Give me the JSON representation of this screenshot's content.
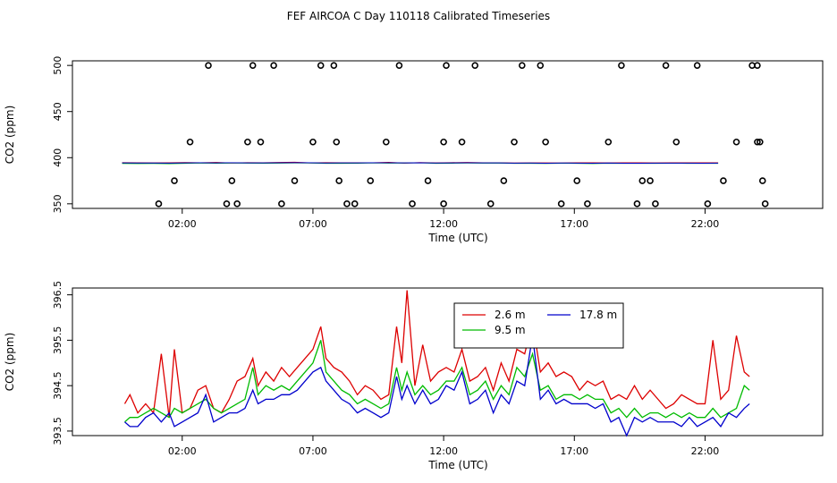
{
  "title": "FEF AIRCOA C  Day 110118  Calibrated Timeseries",
  "colors": {
    "s1": "#dd0000",
    "s2": "#00bb00",
    "s3": "#0000cc",
    "axis": "#000000"
  },
  "chart_data": [
    {
      "type": "scatter",
      "xlabel": "Time (UTC)",
      "ylabel": "CO2 (ppm)",
      "xlim": [
        -2.2,
        26.5
      ],
      "ylim": [
        345,
        505
      ],
      "xticks": [
        2,
        7,
        12,
        17,
        22
      ],
      "xticklabels": [
        "02:00",
        "07:00",
        "12:00",
        "17:00",
        "22:00"
      ],
      "yticks": [
        350,
        400,
        450,
        500
      ],
      "yticklabels": [
        "350",
        "400",
        "450",
        "500"
      ],
      "points_x": [
        1.1,
        1.7,
        2.3,
        3.0,
        3.7,
        3.9,
        4.1,
        4.5,
        4.7,
        5.0,
        5.5,
        5.8,
        6.3,
        7.0,
        7.3,
        7.8,
        7.9,
        8.0,
        8.3,
        8.6,
        9.2,
        9.8,
        10.3,
        10.8,
        11.4,
        12.0,
        12.0,
        12.1,
        12.7,
        13.2,
        13.8,
        14.3,
        14.7,
        15.0,
        15.7,
        15.9,
        16.5,
        17.1,
        17.5,
        18.3,
        18.8,
        19.4,
        19.6,
        19.9,
        20.1,
        20.5,
        20.9,
        21.7,
        22.1,
        22.7,
        23.2,
        23.8,
        24.0,
        24.0,
        24.1,
        24.2,
        24.3
      ],
      "points_y": [
        350,
        375,
        417,
        500,
        350,
        375,
        350,
        417,
        500,
        417,
        500,
        350,
        375,
        417,
        500,
        500,
        417,
        375,
        350,
        350,
        375,
        417,
        500,
        350,
        375,
        350,
        417,
        500,
        417,
        500,
        350,
        375,
        417,
        500,
        500,
        417,
        350,
        375,
        350,
        417,
        500,
        350,
        375,
        375,
        350,
        500,
        417,
        500,
        350,
        375,
        417,
        500,
        500,
        417,
        417,
        375,
        350
      ],
      "series": [
        {
          "name": "",
          "values": [
            394.6,
            394.5,
            394.3,
            394.4,
            394.7,
            394.5,
            394.8,
            394.2,
            394.6,
            394.5,
            394.8,
            395.0,
            394.3,
            394.6,
            394.4,
            394.5,
            394.5,
            394.9,
            394.1,
            394.7,
            394.3,
            394.6,
            394.8,
            394.4,
            394.5,
            394.2,
            394.3,
            394.3,
            394.2,
            394.4,
            394.5,
            394.3,
            394.4,
            394.5,
            394.3,
            394.4,
            394.4,
            394.4,
            394.4
          ]
        },
        {
          "name": "",
          "values": [
            393.7,
            393.6,
            393.7,
            393.5,
            393.9,
            394.2,
            394.0,
            394.2,
            394.1,
            394.0,
            394.1,
            394.3,
            394.2,
            393.8,
            393.9,
            394.0,
            394.3,
            394.1,
            394.2,
            394.4,
            393.8,
            394.0,
            394.2,
            394.1,
            394.2,
            393.9,
            393.8,
            393.7,
            394.0,
            393.9,
            393.6,
            394.0,
            393.8,
            393.9,
            393.9,
            394.0,
            393.9,
            393.9,
            393.9
          ]
        },
        {
          "name": "",
          "values": [
            394.3,
            394.2,
            394.2,
            394.1,
            394.3,
            394.4,
            394.3,
            394.5,
            394.3,
            394.3,
            394.5,
            394.6,
            394.4,
            394.2,
            394.3,
            394.3,
            394.4,
            394.5,
            394.3,
            394.5,
            394.2,
            394.3,
            394.4,
            394.3,
            394.3,
            394.1,
            394.2,
            394.0,
            394.2,
            394.1,
            394.0,
            394.2,
            394.0,
            394.0,
            394.1,
            394.1,
            394.1,
            394.0,
            394.1
          ]
        }
      ],
      "series_x": [
        -0.3,
        0.3,
        0.9,
        1.5,
        2.1,
        2.7,
        3.3,
        3.9,
        4.5,
        5.1,
        5.7,
        6.3,
        6.9,
        7.5,
        8.1,
        8.7,
        9.3,
        9.9,
        10.5,
        11.1,
        11.7,
        12.3,
        12.9,
        13.5,
        14.1,
        14.7,
        15.3,
        15.9,
        16.5,
        17.1,
        17.7,
        18.3,
        18.9,
        19.5,
        20.1,
        20.7,
        21.3,
        21.9,
        22.5
      ]
    },
    {
      "type": "line",
      "xlabel": "Time (UTC)",
      "ylabel": "CO2 (ppm)",
      "xlim": [
        -2.2,
        26.5
      ],
      "ylim": [
        393.4,
        396.65
      ],
      "xticks": [
        2,
        7,
        12,
        17,
        22
      ],
      "xticklabels": [
        "02:00",
        "07:00",
        "12:00",
        "17:00",
        "22:00"
      ],
      "yticks": [
        393.5,
        394.5,
        395.5,
        396.5
      ],
      "yticklabels": [
        "393.5",
        "394.5",
        "395.5",
        "396.5"
      ],
      "x": [
        -0.2,
        0.0,
        0.3,
        0.6,
        0.9,
        1.2,
        1.5,
        1.7,
        2.0,
        2.3,
        2.6,
        2.9,
        3.2,
        3.5,
        3.8,
        4.1,
        4.4,
        4.7,
        4.9,
        5.2,
        5.5,
        5.8,
        6.1,
        6.4,
        6.7,
        7.0,
        7.3,
        7.5,
        7.8,
        8.1,
        8.4,
        8.7,
        9.0,
        9.3,
        9.6,
        9.9,
        10.2,
        10.4,
        10.6,
        10.9,
        11.2,
        11.5,
        11.8,
        12.1,
        12.4,
        12.7,
        13.0,
        13.3,
        13.6,
        13.9,
        14.2,
        14.5,
        14.8,
        15.1,
        15.4,
        15.7,
        16.0,
        16.3,
        16.6,
        16.9,
        17.2,
        17.5,
        17.8,
        18.1,
        18.4,
        18.7,
        19.0,
        19.3,
        19.6,
        19.9,
        20.2,
        20.5,
        20.8,
        21.1,
        21.4,
        21.7,
        22.0,
        22.3,
        22.6,
        22.9,
        23.2,
        23.5,
        23.7
      ],
      "series": [
        {
          "name": "2.6 m",
          "color": "#dd0000",
          "values": [
            394.1,
            394.3,
            393.9,
            394.1,
            393.9,
            395.2,
            393.8,
            395.3,
            393.9,
            394.0,
            394.4,
            394.5,
            394.0,
            393.9,
            394.2,
            394.6,
            394.7,
            395.1,
            394.5,
            394.8,
            394.6,
            394.9,
            394.7,
            394.9,
            395.1,
            395.3,
            395.8,
            395.1,
            394.9,
            394.8,
            394.6,
            394.3,
            394.5,
            394.4,
            394.2,
            394.3,
            395.8,
            395.0,
            396.6,
            394.5,
            395.4,
            394.6,
            394.8,
            394.9,
            394.8,
            395.3,
            394.6,
            394.7,
            394.9,
            394.4,
            395.0,
            394.6,
            395.3,
            395.2,
            395.9,
            394.8,
            395.0,
            394.7,
            394.8,
            394.7,
            394.4,
            394.6,
            394.5,
            394.6,
            394.2,
            394.3,
            394.2,
            394.5,
            394.2,
            394.4,
            394.2,
            394.0,
            394.1,
            394.3,
            394.2,
            394.1,
            394.1,
            395.5,
            394.2,
            394.4,
            395.6,
            394.8,
            394.7
          ]
        },
        {
          "name": "9.5 m",
          "color": "#00bb00",
          "values": [
            393.7,
            393.8,
            393.8,
            393.9,
            394.0,
            393.9,
            393.8,
            394.0,
            393.9,
            394.0,
            394.1,
            394.2,
            394.0,
            393.9,
            394.0,
            394.1,
            394.2,
            394.9,
            394.3,
            394.5,
            394.4,
            394.5,
            394.4,
            394.6,
            394.8,
            395.0,
            395.5,
            394.8,
            394.6,
            394.4,
            394.3,
            394.1,
            394.2,
            394.1,
            394.0,
            394.1,
            394.9,
            394.4,
            394.8,
            394.3,
            394.5,
            394.3,
            394.4,
            394.6,
            394.6,
            394.9,
            394.3,
            394.4,
            394.6,
            394.2,
            394.5,
            394.3,
            394.9,
            394.7,
            395.2,
            394.4,
            394.5,
            394.2,
            394.3,
            394.3,
            394.2,
            394.3,
            394.2,
            394.2,
            393.9,
            394.0,
            393.8,
            394.0,
            393.8,
            393.9,
            393.9,
            393.8,
            393.9,
            393.8,
            393.9,
            393.8,
            393.8,
            394.0,
            393.8,
            393.9,
            394.0,
            394.5,
            394.4
          ]
        },
        {
          "name": "17.8 m",
          "color": "#0000cc",
          "values": [
            393.7,
            393.6,
            393.6,
            393.8,
            393.9,
            393.7,
            393.9,
            393.6,
            393.7,
            393.8,
            393.9,
            394.3,
            393.7,
            393.8,
            393.9,
            393.9,
            394.0,
            394.4,
            394.1,
            394.2,
            394.2,
            394.3,
            394.3,
            394.4,
            394.6,
            394.8,
            394.9,
            394.6,
            394.4,
            394.2,
            394.1,
            393.9,
            394.0,
            393.9,
            393.8,
            393.9,
            394.7,
            394.2,
            394.5,
            394.1,
            394.4,
            394.1,
            394.2,
            394.5,
            394.4,
            394.8,
            394.1,
            394.2,
            394.4,
            393.9,
            394.3,
            394.1,
            394.6,
            394.5,
            395.6,
            394.2,
            394.4,
            394.1,
            394.2,
            394.1,
            394.1,
            394.1,
            394.0,
            394.1,
            393.7,
            393.8,
            393.4,
            393.8,
            393.7,
            393.8,
            393.7,
            393.7,
            393.7,
            393.6,
            393.8,
            393.6,
            393.7,
            393.8,
            393.6,
            393.9,
            393.8,
            394.0,
            394.1
          ]
        }
      ],
      "legend": {
        "placement": "top-center-right",
        "entries": [
          "2.6 m",
          "9.5 m",
          "17.8 m"
        ]
      }
    }
  ]
}
